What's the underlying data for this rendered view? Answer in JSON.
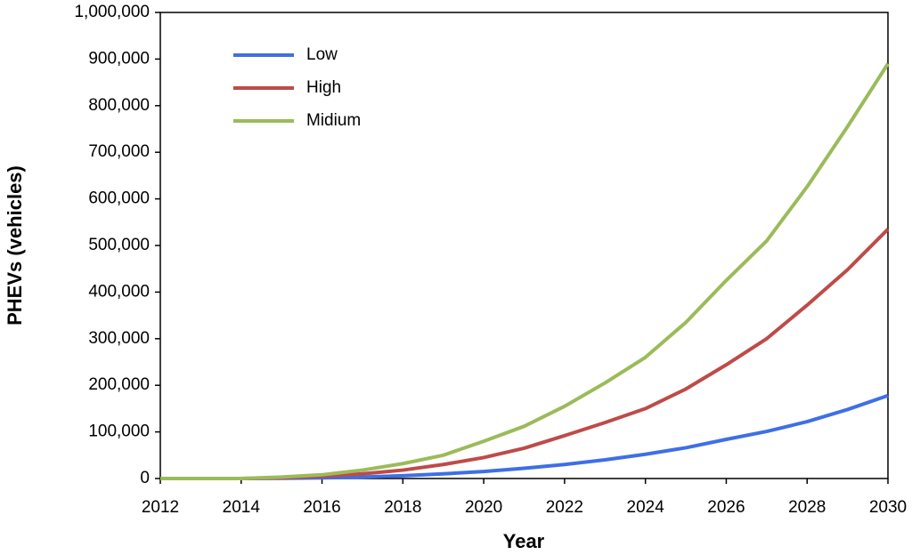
{
  "chart_data": {
    "type": "line",
    "x_label": "Year",
    "y_label": "PHEVs (vehicles)",
    "x": [
      2012,
      2013,
      2014,
      2015,
      2016,
      2017,
      2018,
      2019,
      2020,
      2021,
      2022,
      2023,
      2024,
      2025,
      2026,
      2027,
      2028,
      2029,
      2030
    ],
    "series": [
      {
        "name": "Low",
        "color": "#3e6fe6",
        "values": [
          0,
          0,
          0,
          500,
          1500,
          3000,
          6000,
          10000,
          15000,
          22000,
          30000,
          40000,
          52000,
          66000,
          84000,
          101000,
          122000,
          148000,
          178000
        ]
      },
      {
        "name": "High",
        "color": "#be4b48",
        "values": [
          0,
          0,
          0,
          1500,
          5000,
          10000,
          18000,
          30000,
          45000,
          65000,
          92000,
          120000,
          150000,
          192000,
          244000,
          300000,
          372000,
          448000,
          535000
        ]
      },
      {
        "name": "Midium",
        "color": "#9bbb59",
        "values": [
          0,
          0,
          0,
          3000,
          8000,
          18000,
          32000,
          50000,
          80000,
          112000,
          155000,
          205000,
          260000,
          335000,
          425000,
          510000,
          626000,
          755000,
          890000
        ]
      }
    ],
    "xlim": [
      2012,
      2030
    ],
    "xticks": [
      2012,
      2014,
      2016,
      2018,
      2020,
      2022,
      2024,
      2026,
      2028,
      2030
    ],
    "ylim": [
      0,
      1000000
    ],
    "yticks": [
      0,
      {
        "value": 100000,
        "label": "100,000"
      },
      {
        "value": 200000,
        "label": "200,000"
      },
      {
        "value": 300000,
        "label": "300,000"
      },
      {
        "value": 400000,
        "label": "400,000"
      },
      {
        "value": 500000,
        "label": "500,000"
      },
      {
        "value": 600000,
        "label": "600,000"
      },
      {
        "value": 700000,
        "label": "700,000"
      },
      {
        "value": 800000,
        "label": "800,000"
      },
      {
        "value": 900000,
        "label": "900,000"
      },
      {
        "value": 1000000,
        "label": "1,000,000"
      }
    ],
    "grid": false,
    "legend": "upper-left"
  }
}
